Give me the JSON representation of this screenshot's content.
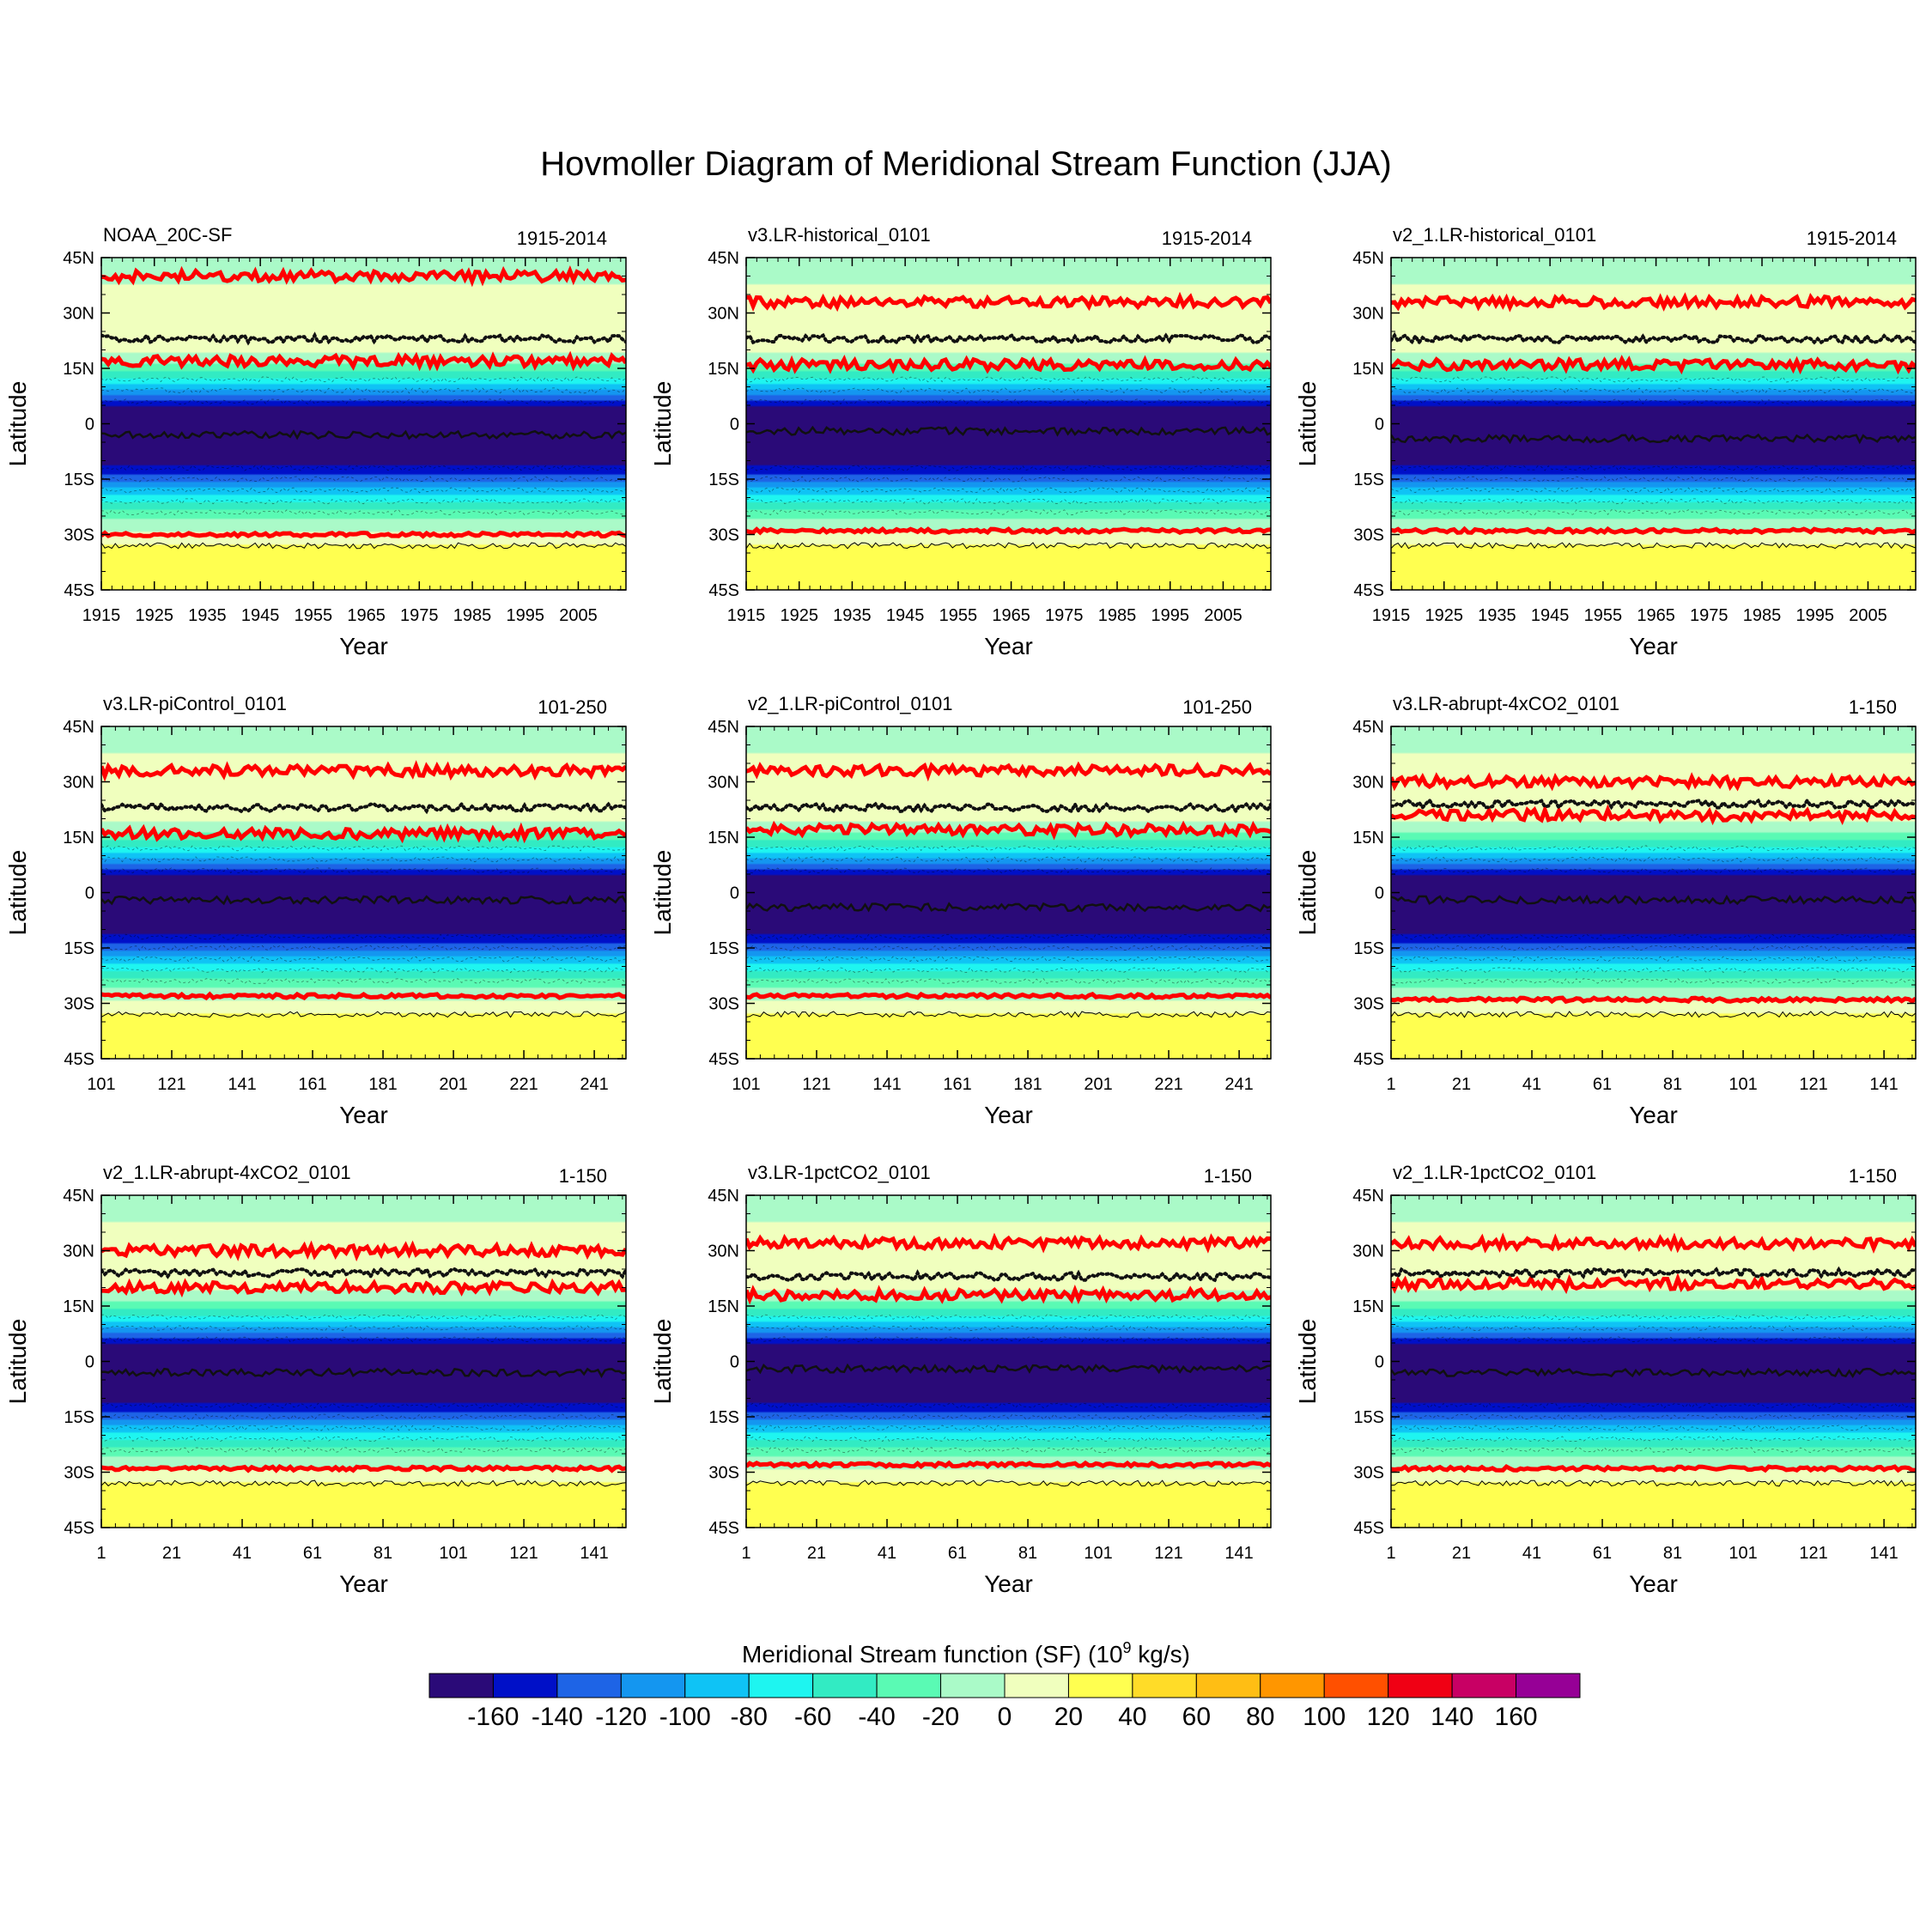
{
  "title": "Hovmoller Diagram of Meridional Stream Function (JJA)",
  "chart_data": {
    "type": "heatmap",
    "ylabel": "Latitude",
    "xlabel": "Year",
    "y_ticks": [
      "45N",
      "30N",
      "15N",
      "0",
      "15S",
      "30S",
      "45S"
    ],
    "y_values": [
      45,
      30,
      15,
      0,
      -15,
      -30,
      -45
    ],
    "ylim": [
      -45,
      45
    ],
    "latitude_profile_1e9kgs": {
      "lat": [
        45,
        40,
        35,
        30,
        25,
        20,
        15,
        10,
        5,
        0,
        -5,
        -10,
        -15,
        -20,
        -25,
        -30,
        -35,
        -40,
        -45
      ],
      "sf": [
        -20,
        -5,
        5,
        15,
        12,
        5,
        -30,
        -90,
        -160,
        -180,
        -180,
        -170,
        -130,
        -70,
        -25,
        5,
        30,
        35,
        35
      ]
    },
    "panels": [
      {
        "name": "NOAA_20C-SF",
        "period": "1915-2014",
        "xlim": [
          1915,
          2014
        ],
        "ticks": [
          1915,
          1925,
          1935,
          1945,
          1955,
          1965,
          1975,
          1985,
          1995,
          2005
        ],
        "zero_lines_lat": [
          40,
          17,
          -30
        ],
        "dotted_lat": 23,
        "solid_lat": -3
      },
      {
        "name": "v3.LR-historical_0101",
        "period": "1915-2014",
        "xlim": [
          1915,
          2014
        ],
        "ticks": [
          1915,
          1925,
          1935,
          1945,
          1955,
          1965,
          1975,
          1985,
          1995,
          2005
        ],
        "zero_lines_lat": [
          33,
          16,
          -29
        ],
        "dotted_lat": 23,
        "solid_lat": -2
      },
      {
        "name": "v2_1.LR-historical_0101",
        "period": "1915-2014",
        "xlim": [
          1915,
          2014
        ],
        "ticks": [
          1915,
          1925,
          1935,
          1945,
          1955,
          1965,
          1975,
          1985,
          1995,
          2005
        ],
        "zero_lines_lat": [
          33,
          16,
          -29
        ],
        "dotted_lat": 23,
        "solid_lat": -4
      },
      {
        "name": "v3.LR-piControl_0101",
        "period": "101-250",
        "xlim": [
          101,
          250
        ],
        "ticks": [
          101,
          121,
          141,
          161,
          181,
          201,
          221,
          241
        ],
        "zero_lines_lat": [
          33,
          16,
          -28
        ],
        "dotted_lat": 23,
        "solid_lat": -2
      },
      {
        "name": "v2_1.LR-piControl_0101",
        "period": "101-250",
        "xlim": [
          101,
          250
        ],
        "ticks": [
          101,
          121,
          141,
          161,
          181,
          201,
          221,
          241
        ],
        "zero_lines_lat": [
          33,
          17,
          -28
        ],
        "dotted_lat": 23,
        "solid_lat": -4
      },
      {
        "name": "v3.LR-abrupt-4xCO2_0101",
        "period": "1-150",
        "xlim": [
          1,
          150
        ],
        "ticks": [
          1,
          21,
          41,
          61,
          81,
          101,
          121,
          141
        ],
        "zero_lines_lat": [
          30,
          21,
          -29
        ],
        "dotted_lat": 24,
        "solid_lat": -2
      },
      {
        "name": "v2_1.LR-abrupt-4xCO2_0101",
        "period": "1-150",
        "xlim": [
          1,
          150
        ],
        "ticks": [
          1,
          21,
          41,
          61,
          81,
          101,
          121,
          141
        ],
        "zero_lines_lat": [
          30,
          20,
          -29
        ],
        "dotted_lat": 24,
        "solid_lat": -3
      },
      {
        "name": "v3.LR-1pctCO2_0101",
        "period": "1-150",
        "xlim": [
          1,
          150
        ],
        "ticks": [
          1,
          21,
          41,
          61,
          81,
          101,
          121,
          141
        ],
        "zero_lines_lat": [
          32,
          18,
          -28
        ],
        "dotted_lat": 23,
        "solid_lat": -2
      },
      {
        "name": "v2_1.LR-1pctCO2_0101",
        "period": "1-150",
        "xlim": [
          1,
          150
        ],
        "ticks": [
          1,
          21,
          41,
          61,
          81,
          101,
          121,
          141
        ],
        "zero_lines_lat": [
          32,
          21,
          -29
        ],
        "dotted_lat": 24,
        "solid_lat": -3
      }
    ],
    "colorbar": {
      "title": "Meridional Stream function (SF)",
      "units_base": "(10",
      "units_exp": "9",
      "units_rest": " kg/s)",
      "levels": [
        -160,
        -140,
        -120,
        -100,
        -80,
        -60,
        -40,
        -20,
        0,
        20,
        40,
        60,
        80,
        100,
        120,
        140,
        160
      ],
      "labels": [
        "-160",
        "-140",
        "-120",
        "-100",
        "-80",
        "-60",
        "-40",
        "-20",
        "0",
        "20",
        "40",
        "60",
        "80",
        "100",
        "120",
        "140",
        "160"
      ],
      "colors": [
        "#2a0a78",
        "#0010c8",
        "#1e64e6",
        "#1496f0",
        "#0fc3f5",
        "#1ef5f0",
        "#32ebc3",
        "#5afab4",
        "#aafac8",
        "#f0ffbe",
        "#ffff50",
        "#ffdc28",
        "#ffbe14",
        "#ff9600",
        "#ff5000",
        "#f00014",
        "#c80064",
        "#960096"
      ]
    }
  }
}
